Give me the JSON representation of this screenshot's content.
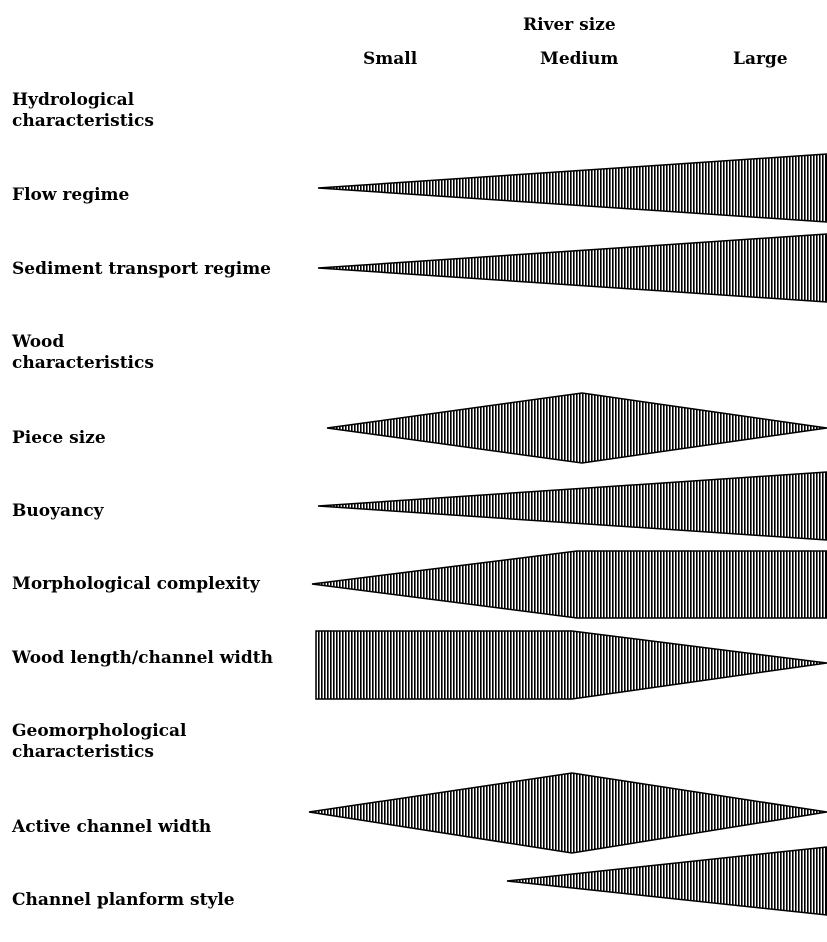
{
  "header": {
    "title": "River size",
    "columns": [
      "Small",
      "Medium",
      "Large"
    ]
  },
  "sections": [
    {
      "heading": [
        "Hydrological",
        "characteristics"
      ]
    },
    {
      "heading": [
        "Wood",
        "characteristics"
      ]
    },
    {
      "heading": [
        "Geomorphological",
        "characteristics"
      ]
    }
  ],
  "rows": [
    {
      "label": "Flow regime",
      "trend": "increasing from small to large"
    },
    {
      "label": "Sediment transport regime",
      "trend": "increasing from small to large"
    },
    {
      "label": "Piece size",
      "trend": "peak at medium"
    },
    {
      "label": "Buoyancy",
      "trend": "increasing from small to large"
    },
    {
      "label": "Morphological complexity",
      "trend": "increasing, plateau from medium to large"
    },
    {
      "label": "Wood length/channel width",
      "trend": "high from small to medium, decreasing to large"
    },
    {
      "label": "Active channel width",
      "trend": "peak at medium"
    },
    {
      "label": "Channel planform style",
      "trend": "begins near medium, increasing to large"
    }
  ],
  "colors": {
    "wedge_stripe": "#000000",
    "wedge_fill": "#ffffff"
  }
}
